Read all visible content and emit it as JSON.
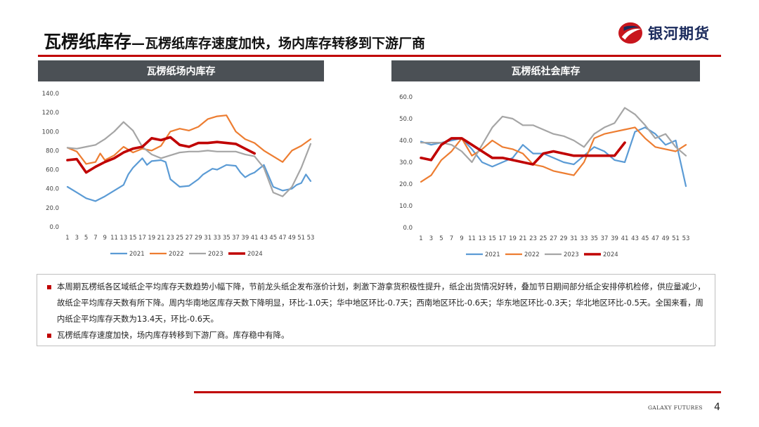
{
  "header": {
    "title_main": "瓦楞纸库存",
    "title_sub": "—瓦楞纸库存速度加快，场内库存转移到下游厂商",
    "logo_text": "银河期货"
  },
  "colors": {
    "accent": "#c00000",
    "panel_header": "#4b5055",
    "logo_red": "#c8161d",
    "logo_navy": "#1a2a5c"
  },
  "chart_data": [
    {
      "type": "line",
      "title": "瓦楞纸场内库存",
      "x": [
        1,
        3,
        5,
        7,
        9,
        11,
        13,
        15,
        17,
        19,
        21,
        23,
        25,
        27,
        29,
        31,
        33,
        35,
        37,
        39,
        41,
        43,
        45,
        47,
        49,
        51,
        53
      ],
      "x_ticks": [
        "1",
        "3",
        "5",
        "7",
        "9",
        "11",
        "13",
        "15",
        "17",
        "19",
        "21",
        "23",
        "25",
        "27",
        "29",
        "31",
        "33",
        "35",
        "37",
        "39",
        "41",
        "43",
        "45",
        "47",
        "49",
        "51",
        "53"
      ],
      "ylim": [
        0,
        140
      ],
      "y_ticks": [
        "0.0",
        "20.0",
        "40.0",
        "60.0",
        "80.0",
        "100.0",
        "120.0",
        "140.0"
      ],
      "legend_position": "bottom",
      "grid": false,
      "series": [
        {
          "name": "2021",
          "color": "#5b9bd5",
          "width": 2.2,
          "x": [
            1,
            3,
            5,
            7,
            9,
            11,
            13,
            14,
            15,
            17,
            18,
            19,
            21,
            22,
            23,
            25,
            27,
            29,
            30,
            31,
            32,
            33,
            35,
            37,
            38,
            39,
            40,
            41,
            43,
            45,
            47,
            49,
            50,
            51,
            52,
            53
          ],
          "values": [
            42,
            36,
            30,
            27,
            32,
            38,
            44,
            55,
            62,
            72,
            65,
            69,
            70,
            68,
            50,
            42,
            43,
            50,
            55,
            58,
            61,
            60,
            65,
            64,
            57,
            52,
            55,
            57,
            65,
            42,
            38,
            40,
            44,
            46,
            55,
            48
          ]
        },
        {
          "name": "2022",
          "color": "#ed7d31",
          "width": 2.2,
          "x": [
            1,
            3,
            5,
            7,
            8,
            9,
            11,
            13,
            15,
            17,
            19,
            21,
            23,
            25,
            27,
            29,
            31,
            33,
            35,
            37,
            39,
            41,
            43,
            45,
            47,
            49,
            51,
            53
          ],
          "values": [
            83,
            79,
            66,
            68,
            77,
            70,
            75,
            84,
            78,
            82,
            80,
            85,
            100,
            103,
            101,
            105,
            113,
            116,
            117,
            100,
            92,
            88,
            80,
            74,
            68,
            80,
            85,
            92
          ]
        },
        {
          "name": "2023",
          "color": "#a5a5a5",
          "width": 2.2,
          "x": [
            1,
            3,
            5,
            7,
            9,
            11,
            13,
            15,
            17,
            19,
            21,
            23,
            25,
            27,
            29,
            31,
            33,
            35,
            37,
            39,
            41,
            43,
            45,
            47,
            49,
            51,
            53
          ],
          "values": [
            83,
            82,
            84,
            86,
            92,
            100,
            110,
            101,
            84,
            76,
            72,
            75,
            78,
            79,
            79,
            80,
            79,
            79,
            79,
            76,
            74,
            62,
            36,
            32,
            42,
            62,
            87
          ]
        },
        {
          "name": "2024",
          "color": "#c00000",
          "width": 3.6,
          "x": [
            1,
            3,
            5,
            7,
            9,
            11,
            13,
            15,
            17,
            19,
            21,
            23,
            25,
            27,
            29,
            31,
            33,
            35,
            37,
            39,
            41
          ],
          "values": [
            70,
            71,
            57,
            63,
            68,
            72,
            78,
            82,
            84,
            93,
            91,
            94,
            86,
            84,
            88,
            88,
            89,
            88,
            87,
            82,
            77
          ]
        }
      ]
    },
    {
      "type": "line",
      "title": "瓦楞纸社会库存",
      "x": [
        1,
        3,
        5,
        7,
        9,
        11,
        13,
        15,
        17,
        19,
        21,
        23,
        25,
        27,
        29,
        31,
        33,
        35,
        37,
        39,
        41,
        43,
        45,
        47,
        49,
        51,
        53
      ],
      "x_ticks": [
        "1",
        "3",
        "5",
        "7",
        "9",
        "11",
        "13",
        "15",
        "17",
        "19",
        "21",
        "23",
        "25",
        "27",
        "29",
        "31",
        "33",
        "35",
        "37",
        "39",
        "41",
        "43",
        "45",
        "47",
        "49",
        "51",
        "53"
      ],
      "ylim": [
        0,
        60
      ],
      "y_ticks": [
        "0.0",
        "10.0",
        "20.0",
        "30.0",
        "40.0",
        "50.0",
        "60.0"
      ],
      "legend_position": "bottom",
      "grid": false,
      "series": [
        {
          "name": "2021",
          "color": "#5b9bd5",
          "width": 2.2,
          "x": [
            1,
            3,
            5,
            7,
            9,
            11,
            13,
            15,
            17,
            19,
            21,
            23,
            25,
            27,
            29,
            31,
            33,
            35,
            37,
            39,
            41,
            43,
            45,
            47,
            49,
            51,
            53
          ],
          "values": [
            39.5,
            38,
            39,
            40,
            41,
            36,
            30,
            28,
            30,
            32,
            38,
            34,
            34,
            32,
            30,
            29,
            33,
            37,
            35,
            31,
            30,
            44,
            46,
            43,
            38,
            40,
            19
          ]
        },
        {
          "name": "2022",
          "color": "#ed7d31",
          "width": 2.2,
          "x": [
            1,
            3,
            5,
            7,
            9,
            11,
            13,
            15,
            17,
            19,
            21,
            23,
            25,
            27,
            29,
            31,
            33,
            35,
            37,
            39,
            41,
            43,
            45,
            47,
            49,
            51,
            53
          ],
          "values": [
            21,
            24,
            31,
            35,
            41,
            33,
            36,
            40,
            37,
            36,
            34,
            29,
            28,
            26,
            25,
            24,
            30,
            41,
            43,
            44,
            45,
            46,
            41,
            37,
            36,
            35,
            38
          ]
        },
        {
          "name": "2023",
          "color": "#a5a5a5",
          "width": 2.2,
          "x": [
            1,
            3,
            5,
            7,
            9,
            11,
            13,
            15,
            17,
            19,
            21,
            23,
            25,
            27,
            29,
            31,
            33,
            35,
            37,
            39,
            41,
            43,
            45,
            47,
            49,
            51,
            53
          ],
          "values": [
            39,
            39,
            39,
            38,
            35,
            30,
            38,
            46,
            51,
            50,
            47,
            47,
            45,
            43,
            42,
            40,
            37,
            43,
            46,
            48,
            55,
            52,
            47,
            41,
            43,
            37,
            33
          ]
        },
        {
          "name": "2024",
          "color": "#c00000",
          "width": 3.6,
          "x": [
            1,
            3,
            5,
            7,
            9,
            11,
            13,
            15,
            17,
            19,
            21,
            23,
            25,
            27,
            29,
            31,
            33,
            35,
            37,
            39,
            41
          ],
          "values": [
            32,
            31,
            38,
            41,
            41,
            38,
            35,
            32,
            32,
            31,
            30,
            29,
            34,
            35,
            34,
            33,
            33,
            33,
            33,
            33,
            39
          ]
        }
      ]
    }
  ],
  "notes": [
    "本周期瓦楞纸各区域纸企平均库存天数趋势小幅下降，节前龙头纸企发布涨价计划，刺激下游拿货积极性提升，纸企出货情况好转，叠加节日期间部分纸企安排停机检修，供应量减少，故纸企平均库存天数有所下降。周内华南地区库存天数下降明显，环比-1.0天；华中地区环比-0.7天；西南地区环比-0.6天；华东地区环比-0.3天；华北地区环比-0.5天。全国来看，周内纸企平均库存天数为13.4天，环比-0.6天。",
    "瓦楞纸库存速度加快，场内库存转移到下游厂商。库存稳中有降。"
  ],
  "footer": {
    "brand": "GALAXY FUTURES",
    "page_number": "4"
  }
}
